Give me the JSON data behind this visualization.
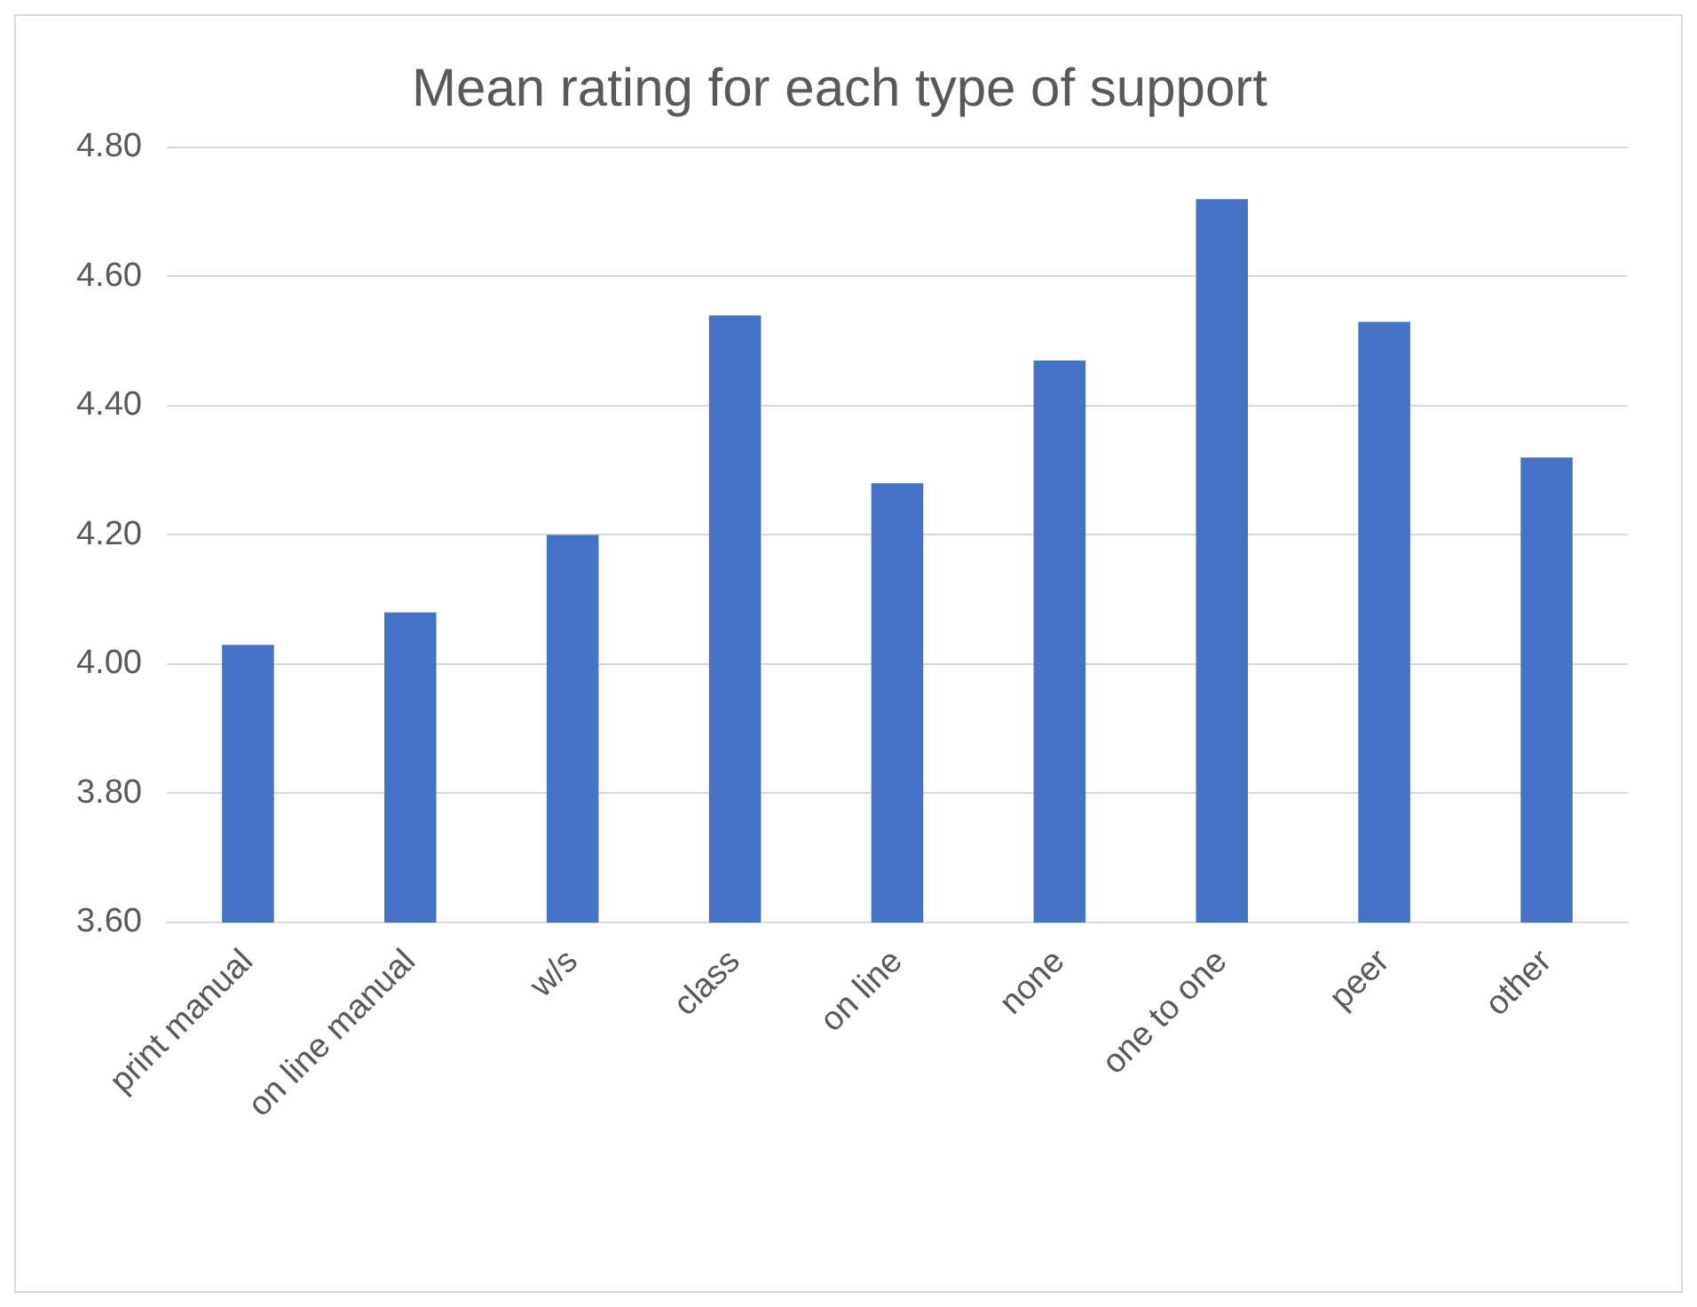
{
  "chart_data": {
    "type": "bar",
    "title": "Mean rating for each type of support",
    "categories": [
      "print manual",
      "on line manual",
      "w/s",
      "class",
      "on line",
      "none",
      "one to one",
      "peer",
      "other"
    ],
    "values": [
      4.03,
      4.08,
      4.2,
      4.54,
      4.28,
      4.47,
      4.72,
      4.53,
      4.32
    ],
    "color": "#4472c4",
    "ylim": [
      3.6,
      4.8
    ],
    "yticks": [
      {
        "value": 3.6,
        "label": "3.60"
      },
      {
        "value": 3.8,
        "label": "3.80"
      },
      {
        "value": 4.0,
        "label": "4.00"
      },
      {
        "value": 4.2,
        "label": "4.20"
      },
      {
        "value": 4.4,
        "label": "4.40"
      },
      {
        "value": 4.6,
        "label": "4.60"
      },
      {
        "value": 4.8,
        "label": "4.80"
      }
    ],
    "grid": "y",
    "legend": false
  }
}
